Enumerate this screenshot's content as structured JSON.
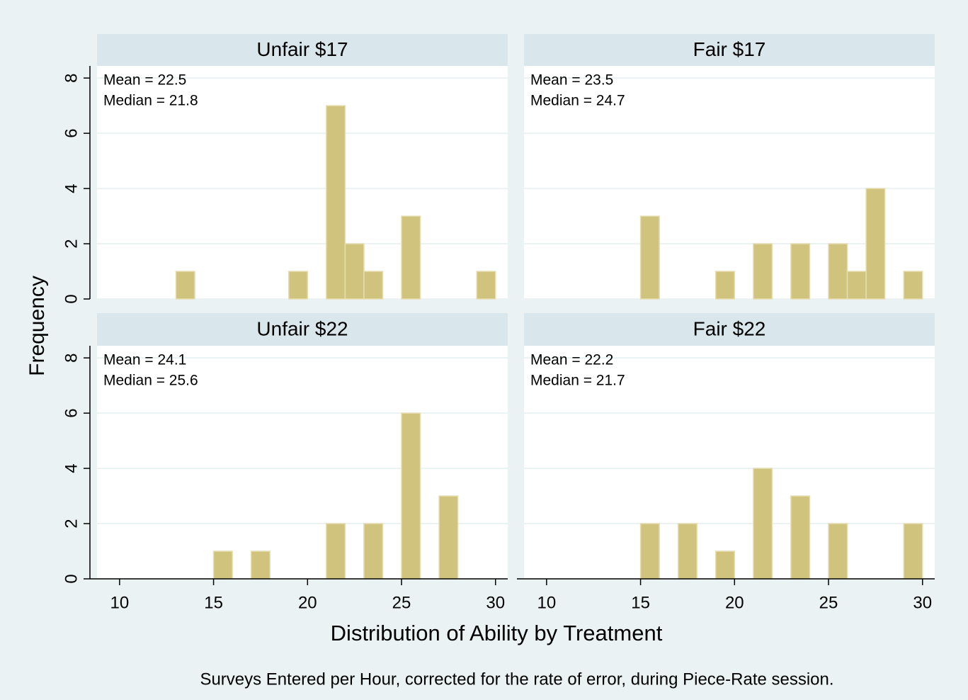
{
  "chart_data": [
    {
      "type": "histogram",
      "title": "Unfair $17",
      "annotations": [
        "Mean = 22.5",
        "Median = 21.8"
      ],
      "bins": [
        13,
        14,
        15,
        16,
        17,
        18,
        19,
        20,
        21,
        22,
        23,
        24,
        25,
        26,
        27,
        28,
        29,
        30
      ],
      "values": [
        1,
        0,
        0,
        0,
        0,
        0,
        1,
        0,
        7,
        2,
        1,
        0,
        3,
        0,
        0,
        0,
        1
      ],
      "color": "#cfc37e",
      "xlim": [
        8.8,
        30.65
      ],
      "ylim": [
        0,
        8.44
      ],
      "yticks": [
        0,
        2,
        4,
        6,
        8
      ],
      "grid": true
    },
    {
      "type": "histogram",
      "title": "Fair $17",
      "annotations": [
        "Mean = 23.5",
        "Median = 24.7"
      ],
      "bins": [
        15,
        16,
        17,
        18,
        19,
        20,
        21,
        22,
        23,
        24,
        25,
        26,
        27,
        28,
        29,
        30
      ],
      "values": [
        3,
        0,
        0,
        0,
        1,
        0,
        2,
        0,
        2,
        0,
        2,
        1,
        4,
        0,
        1
      ],
      "color": "#cfc37e",
      "xlim": [
        8.8,
        30.65
      ],
      "ylim": [
        0,
        8.44
      ],
      "yticks": [
        0,
        2,
        4,
        6,
        8
      ],
      "grid": true
    },
    {
      "type": "histogram",
      "title": "Unfair $22",
      "annotations": [
        "Mean = 24.1",
        "Median = 25.6"
      ],
      "bins": [
        15,
        16,
        17,
        18,
        19,
        20,
        21,
        22,
        23,
        24,
        25,
        26,
        27,
        28
      ],
      "values": [
        1,
        0,
        1,
        0,
        0,
        0,
        2,
        0,
        2,
        0,
        6,
        0,
        3
      ],
      "color": "#cfc37e",
      "xlim": [
        8.8,
        30.65
      ],
      "ylim": [
        0,
        8.44
      ],
      "xticks": [
        10,
        15,
        20,
        25,
        30
      ],
      "yticks": [
        0,
        2,
        4,
        6,
        8
      ],
      "grid": true
    },
    {
      "type": "histogram",
      "title": "Fair $22",
      "annotations": [
        "Mean = 22.2",
        "Median = 21.7"
      ],
      "bins": [
        15,
        16,
        17,
        18,
        19,
        20,
        21,
        22,
        23,
        24,
        25,
        26,
        27,
        28,
        29,
        30
      ],
      "values": [
        2,
        0,
        2,
        0,
        1,
        0,
        4,
        0,
        3,
        0,
        2,
        0,
        0,
        0,
        2
      ],
      "color": "#cfc37e",
      "xlim": [
        8.8,
        30.65
      ],
      "ylim": [
        0,
        8.44
      ],
      "xticks": [
        10,
        15,
        20,
        25,
        30
      ],
      "yticks": [
        0,
        2,
        4,
        6,
        8
      ],
      "grid": true
    }
  ],
  "y_label": "Frequency",
  "x_label": "Distribution of Ability by Treatment",
  "note": "Surveys Entered per Hour, corrected for the rate of error, during Piece-Rate session."
}
